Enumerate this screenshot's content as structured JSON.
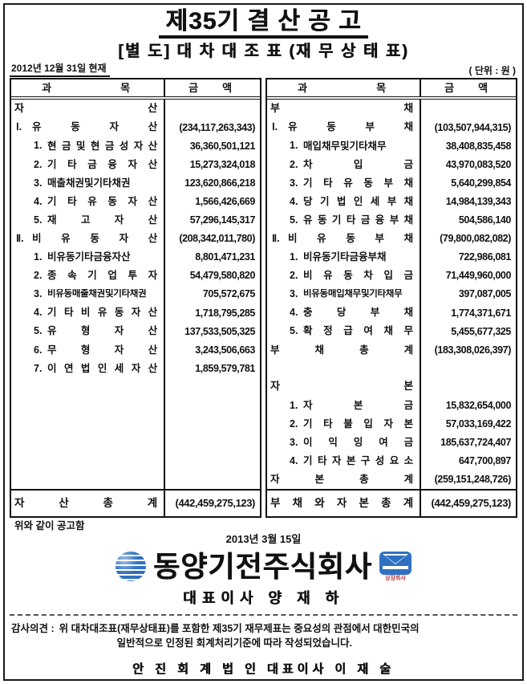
{
  "page": {
    "title": "제35기 결 산 공 고",
    "subtitle": "[별 도]  대 차 대 조 표 (재 무 상 태 표)",
    "as_of_date": "2012년 12월 31일  현재",
    "unit_label": "( 단위 : 원 )"
  },
  "table_headers": {
    "account": "과 목",
    "amount": "금 액"
  },
  "assets_table": {
    "rows": [
      {
        "t": "top",
        "l": "자 산",
        "a": ""
      },
      {
        "t": "sec",
        "p": "Ⅰ.",
        "l": "유 동 자 산",
        "a": "(234,117,263,343)"
      },
      {
        "t": "item",
        "p": "1.",
        "l": "현 금 및 현 금 성 자 산",
        "a": "36,360,501,121"
      },
      {
        "t": "item",
        "p": "2.",
        "l": "기 타 금 융 자 산",
        "a": "15,273,324,018"
      },
      {
        "t": "item",
        "p": "3.",
        "l": "매출채권및기타채권",
        "a": "123,620,866,218"
      },
      {
        "t": "item",
        "p": "4.",
        "l": "기 타 유 동 자 산",
        "a": "1,566,426,669"
      },
      {
        "t": "item",
        "p": "5.",
        "l": "재 고 자 산",
        "a": "57,296,145,317"
      },
      {
        "t": "sec",
        "p": "Ⅱ.",
        "l": "비 유 동 자 산",
        "a": "(208,342,011,780)"
      },
      {
        "t": "item",
        "p": "1.",
        "l": "비유동기타금융자산",
        "a": "8,801,471,231"
      },
      {
        "t": "item",
        "p": "2.",
        "l": "종 속 기 업 투 자",
        "a": "54,479,580,820"
      },
      {
        "t": "item",
        "p": "3.",
        "l": "비유동매출채권및기타채권",
        "a": "705,572,675"
      },
      {
        "t": "item",
        "p": "4.",
        "l": "기 타 비 유 동 자 산",
        "a": "1,718,795,285"
      },
      {
        "t": "item",
        "p": "5.",
        "l": "유 형 자 산",
        "a": "137,533,505,325"
      },
      {
        "t": "item",
        "p": "6.",
        "l": "무 형 자 산",
        "a": "3,243,506,663"
      },
      {
        "t": "item",
        "p": "7.",
        "l": "이 연 법 인 세 자 산",
        "a": "1,859,579,781"
      }
    ],
    "total": {
      "l": "자 산 총 계",
      "a": "(442,459,275,123)"
    }
  },
  "liabilities_equity_table": {
    "rows": [
      {
        "t": "top",
        "l": "부 채",
        "a": ""
      },
      {
        "t": "sec",
        "p": "Ⅰ.",
        "l": "유 동 부 채",
        "a": "(103,507,944,315)"
      },
      {
        "t": "item",
        "p": "1.",
        "l": "매입채무및기타채무",
        "a": "38,408,835,458"
      },
      {
        "t": "item",
        "p": "2.",
        "l": "차 입 금",
        "a": "43,970,083,520"
      },
      {
        "t": "item",
        "p": "3.",
        "l": "기 타 유 동 부 채",
        "a": "5,640,299,854"
      },
      {
        "t": "item",
        "p": "4.",
        "l": "당 기 법 인 세 부 채",
        "a": "14,984,139,343"
      },
      {
        "t": "item",
        "p": "5.",
        "l": "유 동 기 타 금 융 부 채",
        "a": "504,586,140"
      },
      {
        "t": "sec",
        "p": "Ⅱ.",
        "l": "비 유 동 부 채",
        "a": "(79,800,082,082)"
      },
      {
        "t": "item",
        "p": "1.",
        "l": "비유동기타금융부채",
        "a": "722,986,081"
      },
      {
        "t": "item",
        "p": "2.",
        "l": "비 유 동 차 입 금",
        "a": "71,449,960,000"
      },
      {
        "t": "item",
        "p": "3.",
        "l": "비유동매입채무및기타채무",
        "a": "397,087,005"
      },
      {
        "t": "item",
        "p": "4.",
        "l": "충 당 부 채",
        "a": "1,774,371,671"
      },
      {
        "t": "item",
        "p": "5.",
        "l": "확 정 급 여 채 무",
        "a": "5,455,677,325"
      },
      {
        "t": "sub",
        "l": "부 채 총 계",
        "a": "(183,308,026,397)"
      },
      {
        "t": "sp",
        "l": "",
        "a": ""
      },
      {
        "t": "top",
        "l": "자 본",
        "a": ""
      },
      {
        "t": "item",
        "p": "1.",
        "l": "자 본 금",
        "a": "15,832,654,000"
      },
      {
        "t": "item",
        "p": "2.",
        "l": "기 타 불 입 자 본",
        "a": "57,033,169,422"
      },
      {
        "t": "item",
        "p": "3.",
        "l": "이 익 잉 여 금",
        "a": "185,637,724,407"
      },
      {
        "t": "item",
        "p": "4.",
        "l": "기 타 자 본 구 성 요 소",
        "a": "647,700,897"
      },
      {
        "t": "sub",
        "l": "자 본 총 계",
        "a": "(259,151,248,726)"
      }
    ],
    "total": {
      "l": "부 채 와 자 본 총 계",
      "a": "(442,459,275,123)"
    }
  },
  "footer": {
    "notice": "위와 같이 공고함",
    "date": "2013년 3월 15일",
    "company_name": "동양기전주식회사",
    "badge_text": "상장회사",
    "ceo_line": "대표이사  양 재 하",
    "audit_label": "감사의견 :",
    "audit_line1": "위 대차대조표(재무상태표)를 포함한 제35기 재무제표는 중요성의 관점에서 대한민국의",
    "audit_line2": "일반적으로 인정된 회계처리기준에 따라 작성되었습니다.",
    "auditor_line": "안 진 회 계 법 인  대표이사  이 재 술"
  },
  "colors": {
    "logo_blue": "#2e71c2",
    "badge_text_red": "#c23030",
    "ink_black": "#111111"
  }
}
